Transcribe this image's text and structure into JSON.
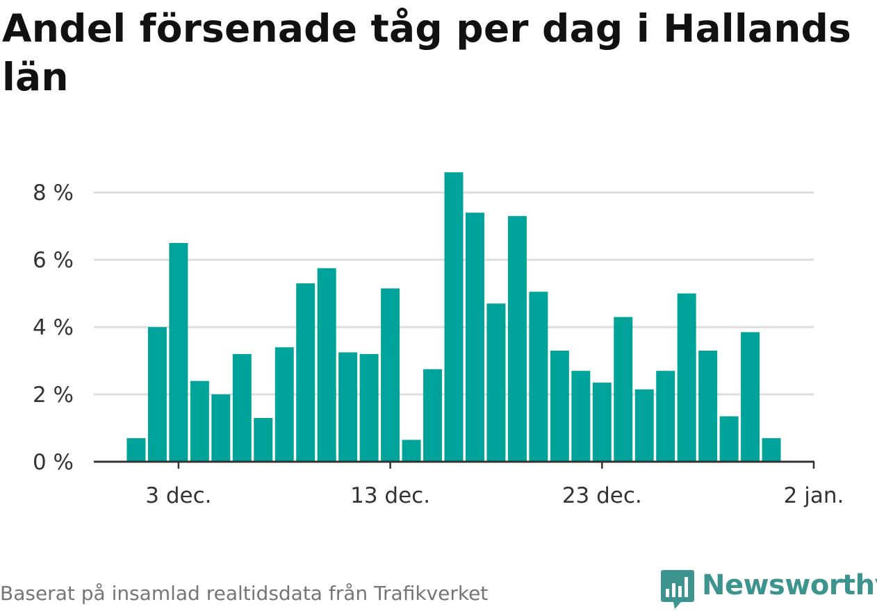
{
  "title": "Andel försenade tåg per dag i Hallands län",
  "footer": "Baserat på insamlad realtidsdata från Trafikverket",
  "logo": {
    "name": "Newsworthy",
    "icon": "bar-chart-speech-bubble-icon",
    "color": "#3d938e"
  },
  "colors": {
    "bar": "#00a39a",
    "grid": "#dddddd",
    "axis": "#333333"
  },
  "chart_data": {
    "type": "bar",
    "title": "Andel försenade tåg per dag i Hallands län",
    "xlabel": "",
    "ylabel": "",
    "ylim": [
      0,
      8.5
    ],
    "grid": true,
    "y_ticks": [
      {
        "value": 0,
        "label": "0 %"
      },
      {
        "value": 2,
        "label": "2 %"
      },
      {
        "value": 4,
        "label": "4 %"
      },
      {
        "value": 6,
        "label": "6 %"
      },
      {
        "value": 8,
        "label": "8 %"
      }
    ],
    "x_range": [
      "2019-11-29",
      "2020-01-02"
    ],
    "x_ticks": [
      {
        "date": "2019-12-03",
        "label": "3 dec."
      },
      {
        "date": "2019-12-13",
        "label": "13 dec."
      },
      {
        "date": "2019-12-23",
        "label": "23 dec."
      },
      {
        "date": "2020-01-02",
        "label": "2 jan."
      }
    ],
    "x": [
      "2019-12-01",
      "2019-12-02",
      "2019-12-03",
      "2019-12-04",
      "2019-12-05",
      "2019-12-06",
      "2019-12-07",
      "2019-12-08",
      "2019-12-09",
      "2019-12-10",
      "2019-12-11",
      "2019-12-12",
      "2019-12-13",
      "2019-12-14",
      "2019-12-15",
      "2019-12-16",
      "2019-12-17",
      "2019-12-18",
      "2019-12-19",
      "2019-12-20",
      "2019-12-21",
      "2019-12-22",
      "2019-12-23",
      "2019-12-24",
      "2019-12-25",
      "2019-12-26",
      "2019-12-27",
      "2019-12-28",
      "2019-12-29",
      "2019-12-30",
      "2019-12-31"
    ],
    "values": [
      0.7,
      4.0,
      6.5,
      2.4,
      2.0,
      3.2,
      1.3,
      3.4,
      5.3,
      5.75,
      3.25,
      3.2,
      5.15,
      0.65,
      2.75,
      8.6,
      7.4,
      4.7,
      7.3,
      5.05,
      3.3,
      2.7,
      2.35,
      4.3,
      2.15,
      2.7,
      5.0,
      3.3,
      1.35,
      3.85,
      0.7
    ]
  }
}
